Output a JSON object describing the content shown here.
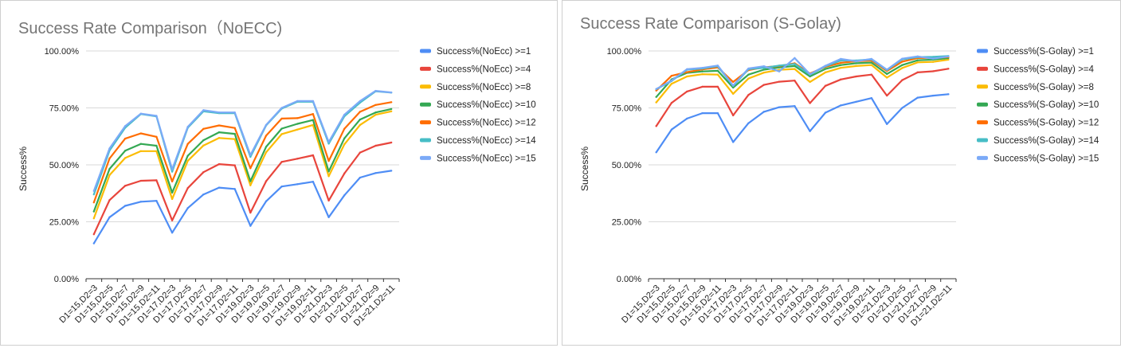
{
  "chart_data": [
    {
      "type": "line",
      "title": "Success Rate Comparison（NoECC)",
      "ylabel": "Success%",
      "xlabel": "",
      "ylim": [
        0,
        100
      ],
      "yticks": [
        "0.00%",
        "25.00%",
        "50.00%",
        "75.00%",
        "100.00%"
      ],
      "grid": true,
      "legend_position": "right",
      "categories": [
        "D1=15,D2=3",
        "D1=15,D2=5",
        "D1=15,D2=7",
        "D1=15,D2=9",
        "D1=15,D2=11",
        "D1=17,D2=3",
        "D1=17,D2=5",
        "D1=17,D2=7",
        "D1=17,D2=9",
        "D1=17,D2=11",
        "D1=19,D2=3",
        "D1=19,D2=5",
        "D1=19,D2=7",
        "D1=19,D2=9",
        "D1=19,D2=11",
        "D1=21,D2=3",
        "D1=21,D2=5",
        "D1=21,D2=7",
        "D1=21,D2=9",
        "D1=21,D2=11"
      ],
      "series": [
        {
          "name": "Success%(NoEcc) >=1",
          "color": "#4e8df5",
          "values": [
            15.5,
            27,
            32,
            33.8,
            34.2,
            20.2,
            31,
            37,
            40,
            39.4,
            23.2,
            34,
            40.5,
            41.5,
            42.6,
            27,
            36.6,
            44.4,
            46.4,
            47.4
          ]
        },
        {
          "name": "Success%(NoEcc) >=4",
          "color": "#e8453c",
          "values": [
            19.5,
            34.5,
            40.8,
            43,
            43.2,
            25.6,
            39.8,
            46.8,
            50.3,
            49.8,
            29,
            42.8,
            51.3,
            52.7,
            54.2,
            34.3,
            46.2,
            55.4,
            58.4,
            59.8
          ]
        },
        {
          "name": "Success%(NoEcc) >=8",
          "color": "#fbbc04",
          "values": [
            26.5,
            45.5,
            53,
            56,
            56,
            35,
            51.8,
            58.5,
            61.8,
            61.3,
            41,
            55.5,
            63.5,
            65.5,
            67.5,
            45,
            59,
            67.5,
            72,
            73.5
          ]
        },
        {
          "name": "Success%(NoEcc) >=10",
          "color": "#34a853",
          "values": [
            29.5,
            48.2,
            56.2,
            59.2,
            58.4,
            37.8,
            54,
            60.8,
            64.3,
            63.6,
            42.8,
            57.9,
            65.9,
            68,
            69.7,
            47.1,
            61.6,
            69.9,
            73,
            74.5
          ]
        },
        {
          "name": "Success%(NoEcc) >=12",
          "color": "#ff6d01",
          "values": [
            33.5,
            52.8,
            61.5,
            63.8,
            62.3,
            42.7,
            59.2,
            65.8,
            67.3,
            66.2,
            48.5,
            62.8,
            70.3,
            70.5,
            72.3,
            51.7,
            65.8,
            73.3,
            76.3,
            77.5
          ]
        },
        {
          "name": "Success%(NoEcc) >=14",
          "color": "#46bdc6",
          "values": [
            37,
            56.3,
            66.3,
            72.3,
            71.3,
            47,
            66.3,
            73.5,
            72.7,
            72.7,
            53.5,
            67.3,
            74.7,
            77.7,
            77.7,
            59.3,
            71.3,
            77.3,
            82.3,
            81.7
          ]
        },
        {
          "name": "Success%(NoEcc) >=15",
          "color": "#7baaf7",
          "values": [
            38.5,
            57.2,
            67,
            72.5,
            71.5,
            48,
            66.7,
            74,
            73,
            73,
            54.3,
            67.5,
            75,
            78,
            78,
            60,
            72,
            78,
            82.5,
            81.8
          ]
        }
      ]
    },
    {
      "type": "line",
      "title": "Success Rate Comparison (S-Golay)",
      "ylabel": "Success%",
      "xlabel": "",
      "ylim": [
        0,
        100
      ],
      "yticks": [
        "0.00%",
        "25.00%",
        "50.00%",
        "75.00%",
        "100.00%"
      ],
      "grid": true,
      "legend_position": "right",
      "categories": [
        "D1=15,D2=3",
        "D1=15,D2=5",
        "D1=15,D2=7",
        "D1=15,D2=9",
        "D1=15,D2=11",
        "D1=17,D2=3",
        "D1=17,D2=5",
        "D1=17,D2=7",
        "D1=17,D2=9",
        "D1=17,D2=11",
        "D1=19,D2=3",
        "D1=19,D2=5",
        "D1=19,D2=7",
        "D1=19,D2=9",
        "D1=19,D2=11",
        "D1=21,D2=3",
        "D1=21,D2=5",
        "D1=21,D2=7",
        "D1=21,D2=9",
        "D1=21,D2=11"
      ],
      "series": [
        {
          "name": "Success%(S-Golay) >=1",
          "color": "#4e8df5",
          "values": [
            55.5,
            65.5,
            70.3,
            72.7,
            72.7,
            60,
            68.3,
            73.3,
            75.3,
            75.8,
            64.8,
            72.9,
            76.1,
            77.7,
            79.3,
            67.9,
            75,
            79.5,
            80.4,
            81
          ]
        },
        {
          "name": "Success%(S-Golay) >=4",
          "color": "#e8453c",
          "values": [
            67,
            77.2,
            82.2,
            84.3,
            84.3,
            71.7,
            80.7,
            85.1,
            86.5,
            87,
            77.1,
            84.7,
            87.5,
            88.8,
            89.6,
            80.4,
            87.2,
            90.6,
            91.1,
            92.2
          ]
        },
        {
          "name": "Success%(S-Golay) >=8",
          "color": "#fbbc04",
          "values": [
            77.4,
            85.6,
            88.8,
            89.8,
            89.6,
            81.2,
            87.9,
            90.5,
            91.7,
            92.1,
            86.4,
            90.6,
            92.6,
            93.4,
            93.8,
            88.3,
            92.5,
            95,
            95.2,
            96.2
          ]
        },
        {
          "name": "Success%(S-Golay) >=10",
          "color": "#34a853",
          "values": [
            79.8,
            87.5,
            90.4,
            91,
            91.3,
            83.9,
            89.6,
            91.8,
            92.8,
            93.4,
            88.8,
            92.1,
            93.8,
            94.6,
            94.9,
            89.9,
            93.8,
            95.9,
            96.2,
            96.9
          ]
        },
        {
          "name": "Success%(S-Golay) >=12",
          "color": "#ff6d01",
          "values": [
            82.6,
            89.1,
            90.7,
            91.9,
            92.8,
            86.4,
            91.6,
            92.8,
            93.4,
            94.6,
            90.1,
            93,
            94.8,
            95.5,
            95.8,
            91.2,
            95.3,
            96.9,
            97,
            97.3
          ]
        },
        {
          "name": "Success%(S-Golay) >=14",
          "color": "#46bdc6",
          "values": [
            83.2,
            86.8,
            91.8,
            92.3,
            93.3,
            84.6,
            92,
            92.6,
            93.6,
            94.3,
            89.6,
            93.3,
            95.8,
            95.8,
            96.3,
            91.6,
            96.3,
            97.3,
            97.4,
            97.8
          ]
        },
        {
          "name": "Success%(S-Golay) >=15",
          "color": "#7baaf7",
          "values": [
            83.3,
            87,
            92,
            92.6,
            93.6,
            84.8,
            92.3,
            93.3,
            91,
            96.9,
            89.8,
            93.5,
            96.5,
            95.5,
            96.5,
            91.8,
            96.6,
            97.6,
            96.6,
            97.6
          ]
        }
      ]
    }
  ]
}
